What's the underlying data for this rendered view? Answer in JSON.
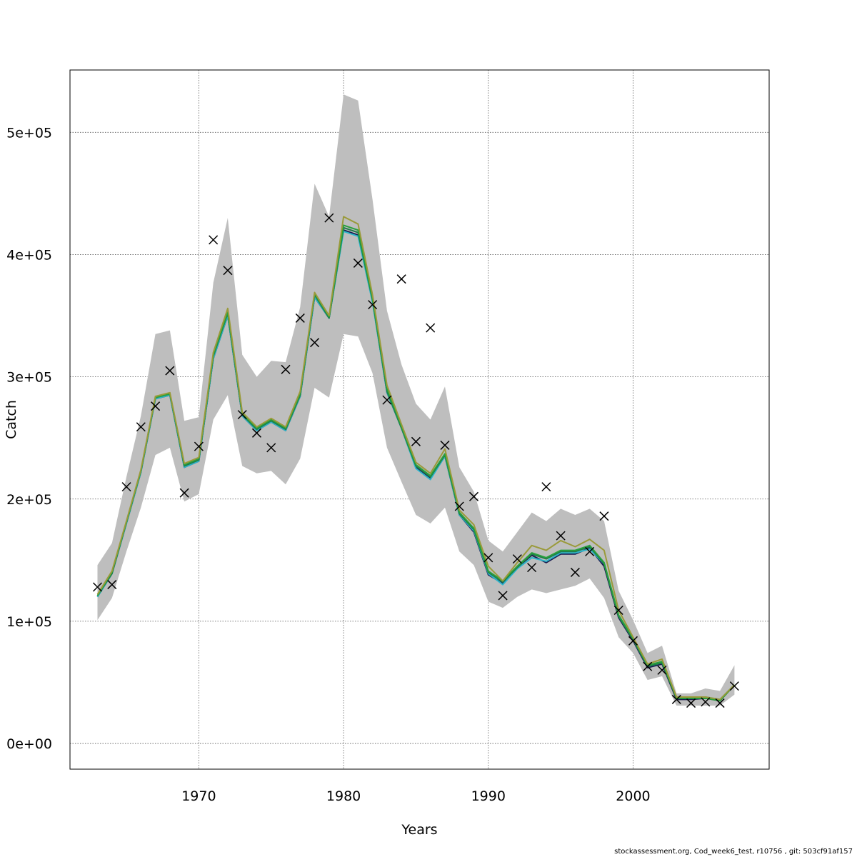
{
  "chart_data": {
    "type": "line",
    "xlabel": "Years",
    "ylabel": "Catch",
    "xlim": [
      1961.1,
      2009.4
    ],
    "ylim": [
      -21000,
      551000
    ],
    "x_ticks": [
      1970,
      1980,
      1990,
      2000
    ],
    "x_tick_labels": [
      "1970",
      "1980",
      "1990",
      "2000"
    ],
    "y_ticks": [
      0,
      100000,
      200000,
      300000,
      400000,
      500000
    ],
    "y_tick_labels": [
      "0e+00",
      "1e+05",
      "2e+05",
      "3e+05",
      "4e+05",
      "5e+05"
    ],
    "grid": true,
    "colors": {
      "band": "#bebebe",
      "fit_colors": [
        "#1a1a4e",
        "#2bb5c9",
        "#1f7a4a",
        "#28a03c",
        "#9a9a3a"
      ],
      "observed": "#000000"
    },
    "years": [
      1963,
      1964,
      1965,
      1966,
      1967,
      1968,
      1969,
      1970,
      1971,
      1972,
      1973,
      1974,
      1975,
      1976,
      1977,
      1978,
      1979,
      1980,
      1981,
      1982,
      1983,
      1984,
      1985,
      1986,
      1987,
      1988,
      1989,
      1990,
      1991,
      1992,
      1993,
      1994,
      1995,
      1996,
      1997,
      1998,
      1999,
      2000,
      2001,
      2002,
      2003,
      2004,
      2005,
      2006,
      2007
    ],
    "band_upper": [
      146000,
      164000,
      218000,
      268000,
      335000,
      338000,
      264000,
      267000,
      377000,
      430000,
      318000,
      300000,
      313000,
      312000,
      357000,
      458000,
      431000,
      531000,
      526000,
      445000,
      354000,
      310000,
      278000,
      265000,
      292000,
      226000,
      206000,
      166000,
      157000,
      173000,
      189000,
      182000,
      192000,
      187000,
      192000,
      182000,
      125000,
      101000,
      74000,
      80000,
      41000,
      41000,
      45000,
      43000,
      64000
    ],
    "band_lower": [
      101000,
      119000,
      157000,
      193000,
      236000,
      242000,
      198000,
      204000,
      265000,
      285000,
      227000,
      221000,
      223000,
      212000,
      233000,
      291000,
      283000,
      335000,
      333000,
      303000,
      242000,
      214000,
      187000,
      180000,
      193000,
      157000,
      146000,
      116000,
      111000,
      120000,
      126000,
      123000,
      126000,
      129000,
      135000,
      119000,
      87000,
      74000,
      52000,
      55000,
      31000,
      31000,
      31000,
      31000,
      40000
    ],
    "series": [
      {
        "values": [
          120000,
          139000,
          180000,
          222000,
          282000,
          285000,
          226000,
          231000,
          315000,
          350000,
          268000,
          256000,
          263000,
          256000,
          284000,
          365000,
          348000,
          420000,
          416000,
          362000,
          287000,
          258000,
          226000,
          217000,
          235000,
          187000,
          173000,
          138000,
          131000,
          144000,
          154000,
          148000,
          155000,
          155000,
          160000,
          145000,
          103000,
          84000,
          62000,
          65000,
          36000,
          36000,
          37000,
          35000,
          48000
        ]
      },
      {
        "values": [
          120000,
          139000,
          180000,
          222000,
          282000,
          285000,
          226000,
          231000,
          315000,
          350000,
          268000,
          256000,
          263000,
          256000,
          284000,
          365000,
          348000,
          419000,
          415000,
          361000,
          287000,
          258000,
          225000,
          216000,
          235000,
          187000,
          174000,
          139000,
          130000,
          143000,
          152000,
          149000,
          156000,
          156000,
          159000,
          147000,
          104000,
          85000,
          63000,
          66000,
          38000,
          38000,
          38000,
          36000,
          48000
        ]
      },
      {
        "values": [
          121000,
          139000,
          181000,
          223000,
          283000,
          286000,
          227000,
          232000,
          317000,
          352000,
          269000,
          257000,
          264000,
          257000,
          285000,
          367000,
          348000,
          422000,
          418000,
          363000,
          288000,
          258000,
          227000,
          218000,
          236000,
          188000,
          175000,
          140000,
          132000,
          144000,
          155000,
          151000,
          157000,
          157000,
          161000,
          147000,
          104000,
          85000,
          63000,
          66000,
          37000,
          37000,
          37000,
          35000,
          48000
        ]
      },
      {
        "values": [
          121000,
          140000,
          181000,
          223000,
          283000,
          286000,
          228000,
          233000,
          318000,
          353000,
          270000,
          258000,
          265000,
          258000,
          286000,
          368000,
          349000,
          424000,
          420000,
          364000,
          290000,
          259000,
          228000,
          219000,
          237000,
          189000,
          176000,
          141000,
          133000,
          145000,
          156000,
          152000,
          158000,
          158000,
          162000,
          148000,
          105000,
          86000,
          64000,
          67000,
          37000,
          37000,
          37000,
          35000,
          48000
        ]
      },
      {
        "values": [
          122000,
          141000,
          182000,
          224000,
          284000,
          287000,
          229000,
          234000,
          320000,
          356000,
          271000,
          259000,
          266000,
          259000,
          288000,
          369000,
          350000,
          431000,
          425000,
          367000,
          293000,
          261000,
          230000,
          221000,
          241000,
          191000,
          179000,
          145000,
          133000,
          148000,
          162000,
          158000,
          166000,
          161000,
          167000,
          158000,
          109000,
          87000,
          65000,
          69000,
          38000,
          38000,
          38000,
          36000,
          48000
        ]
      }
    ],
    "observed": [
      128000,
      130000,
      210000,
      259000,
      276000,
      305000,
      205000,
      243000,
      412000,
      387000,
      269000,
      254000,
      242000,
      306000,
      348000,
      328000,
      430000,
      null,
      393000,
      359000,
      281000,
      380000,
      247000,
      340000,
      244000,
      194000,
      202000,
      152000,
      121000,
      151000,
      144000,
      210000,
      170000,
      140000,
      157000,
      186000,
      109000,
      84000,
      63000,
      60000,
      36000,
      33000,
      34000,
      33000,
      47000
    ]
  },
  "footnote": "stockassessment.org, Cod_week6_test, r10756 , git: 503cf91af157"
}
